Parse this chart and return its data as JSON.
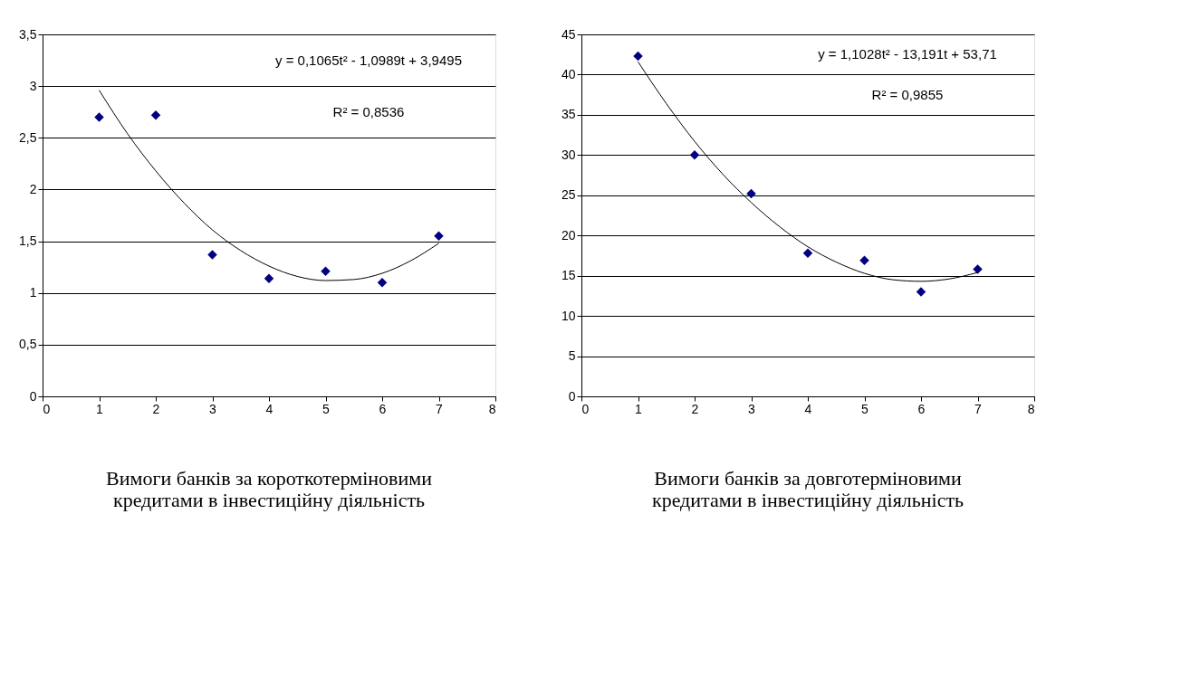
{
  "chart_data": [
    {
      "type": "scatter",
      "title": "Вимоги банків за короткотерміновими кредитами в інвестиційну діяльність",
      "x": [
        1,
        2,
        3,
        4,
        5,
        6,
        7
      ],
      "series": [
        {
          "type": "scatter",
          "color": "#000080",
          "marker": "diamond",
          "values": [
            2.7,
            2.72,
            1.37,
            1.14,
            1.21,
            1.1,
            1.55
          ]
        },
        {
          "type": "line",
          "color": "#000000",
          "x": [
            1,
            1.5,
            2,
            2.5,
            3,
            3.5,
            4,
            4.5,
            5,
            5.5,
            6,
            6.5,
            7
          ],
          "values": [
            2.96,
            2.54,
            2.18,
            1.87,
            1.61,
            1.41,
            1.26,
            1.16,
            1.12,
            1.13,
            1.19,
            1.31,
            1.48
          ]
        }
      ],
      "annotations": [
        "y = 0,1065t² - 1,0989t + 3,9495",
        "R² = 0,8536"
      ],
      "xlim": [
        0,
        8
      ],
      "xticks": [
        0,
        1,
        2,
        3,
        4,
        5,
        6,
        7,
        8
      ],
      "ylim": [
        0,
        3.5
      ],
      "yticks": [
        0,
        {
          "value": 0.5,
          "label": "0,5"
        },
        1,
        {
          "value": 1.5,
          "label": "1,5"
        },
        2,
        {
          "value": 2.5,
          "label": "2,5"
        },
        3,
        {
          "value": 3.5,
          "label": "3,5"
        }
      ],
      "grid": "y"
    },
    {
      "type": "scatter",
      "title": "Вимоги банків за довготерміновими кредитами в інвестиційну діяльність",
      "x": [
        1,
        2,
        3,
        4,
        5,
        6,
        7
      ],
      "series": [
        {
          "type": "scatter",
          "color": "#000080",
          "marker": "diamond",
          "values": [
            42.3,
            30.0,
            25.2,
            17.8,
            16.9,
            13.0,
            15.8
          ]
        },
        {
          "type": "line",
          "color": "#000000",
          "x": [
            1,
            1.5,
            2,
            2.5,
            3,
            3.5,
            4,
            4.5,
            5,
            5.5,
            6,
            6.5,
            7
          ],
          "values": [
            41.6,
            36.4,
            31.7,
            27.6,
            24.1,
            21.1,
            18.6,
            16.7,
            15.3,
            14.5,
            14.3,
            14.6,
            15.4
          ]
        }
      ],
      "annotations": [
        "y = 1,1028t² - 13,191t + 53,71",
        "R² = 0,9855"
      ],
      "xlim": [
        0,
        8
      ],
      "xticks": [
        0,
        1,
        2,
        3,
        4,
        5,
        6,
        7,
        8
      ],
      "ylim": [
        0,
        45
      ],
      "yticks": [
        0,
        5,
        10,
        15,
        20,
        25,
        30,
        35,
        40,
        45
      ],
      "grid": "y"
    }
  ]
}
